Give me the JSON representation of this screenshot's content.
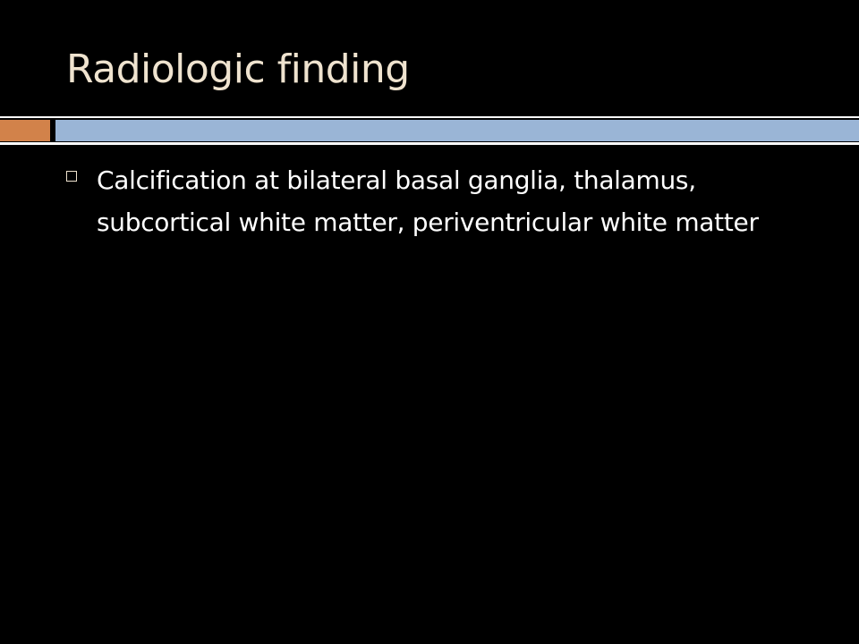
{
  "slide": {
    "title": "Radiologic finding",
    "bullets": [
      {
        "text": "Calcification at bilateral basal ganglia, thalamus, subcortical white matter, periventricular white matter"
      }
    ]
  },
  "colors": {
    "background": "#000000",
    "title": "#EFE3CF",
    "text": "#FFFFFF",
    "accent_orange": "#D2824A",
    "accent_blue": "#9AB5D6"
  }
}
